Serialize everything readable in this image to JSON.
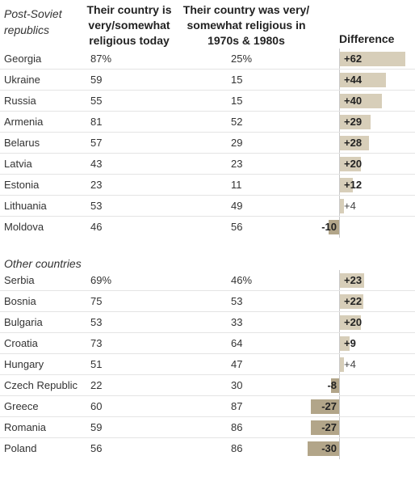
{
  "chart_data": {
    "type": "bar",
    "column_headers": {
      "group": "Post-Soviet republics",
      "today": "Their country is very/somewhat religious today",
      "past": "Their country was very/ somewhat religious in 1970s & 1980s",
      "difference": "Difference"
    },
    "groups": [
      {
        "label": "Post-Soviet republics",
        "rows": [
          {
            "country": "Georgia",
            "today": "87%",
            "past": "25%",
            "diff": 62,
            "diff_label": "+62"
          },
          {
            "country": "Ukraine",
            "today": "59",
            "past": "15",
            "diff": 44,
            "diff_label": "+44"
          },
          {
            "country": "Russia",
            "today": "55",
            "past": "15",
            "diff": 40,
            "diff_label": "+40"
          },
          {
            "country": "Armenia",
            "today": "81",
            "past": "52",
            "diff": 29,
            "diff_label": "+29"
          },
          {
            "country": "Belarus",
            "today": "57",
            "past": "29",
            "diff": 28,
            "diff_label": "+28"
          },
          {
            "country": "Latvia",
            "today": "43",
            "past": "23",
            "diff": 20,
            "diff_label": "+20"
          },
          {
            "country": "Estonia",
            "today": "23",
            "past": "11",
            "diff": 12,
            "diff_label": "+12"
          },
          {
            "country": "Lithuania",
            "today": "53",
            "past": "49",
            "diff": 4,
            "diff_label": "+4"
          },
          {
            "country": "Moldova",
            "today": "46",
            "past": "56",
            "diff": -10,
            "diff_label": "-10"
          }
        ]
      },
      {
        "label": "Other countries",
        "rows": [
          {
            "country": "Serbia",
            "today": "69%",
            "past": "46%",
            "diff": 23,
            "diff_label": "+23"
          },
          {
            "country": "Bosnia",
            "today": "75",
            "past": "53",
            "diff": 22,
            "diff_label": "+22"
          },
          {
            "country": "Bulgaria",
            "today": "53",
            "past": "33",
            "diff": 20,
            "diff_label": "+20"
          },
          {
            "country": "Croatia",
            "today": "73",
            "past": "64",
            "diff": 9,
            "diff_label": "+9"
          },
          {
            "country": "Hungary",
            "today": "51",
            "past": "47",
            "diff": 4,
            "diff_label": "+4"
          },
          {
            "country": "Czech Republic",
            "today": "22",
            "past": "30",
            "diff": -8,
            "diff_label": "-8"
          },
          {
            "country": "Greece",
            "today": "60",
            "past": "87",
            "diff": -27,
            "diff_label": "-27"
          },
          {
            "country": "Romania",
            "today": "59",
            "past": "86",
            "diff": -27,
            "diff_label": "-27"
          },
          {
            "country": "Poland",
            "today": "56",
            "past": "86",
            "diff": -30,
            "diff_label": "-30"
          }
        ]
      }
    ],
    "colors": {
      "positive_bar": "#d7ceb9",
      "negative_bar": "#b2a589"
    }
  }
}
